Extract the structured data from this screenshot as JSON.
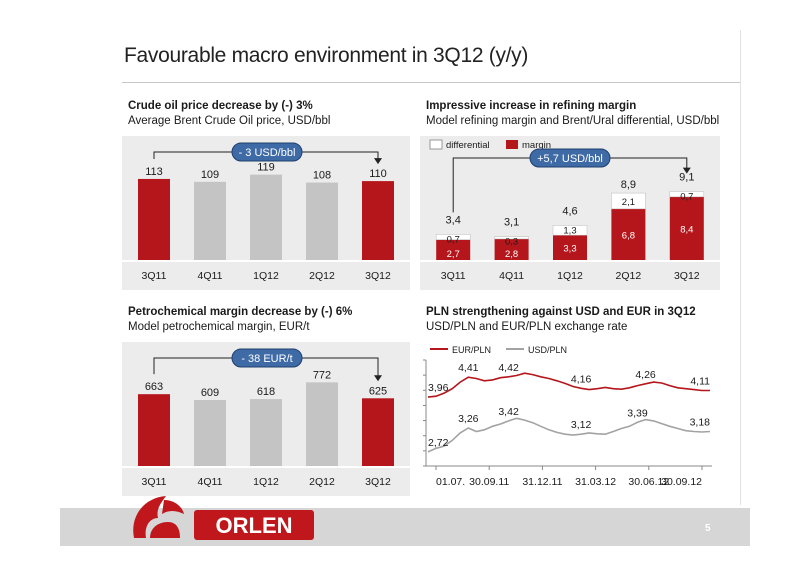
{
  "slide": {
    "title": "Favourable macro environment in 3Q12 (y/y)",
    "page": "5"
  },
  "brand": {
    "name": "ORLEN",
    "color": "#c0171c"
  },
  "colors": {
    "red": "#b5161b",
    "grey": "#c4c4c4",
    "bg": "#ececec",
    "callout": "#3e6aa6",
    "callout_text": "#ffffff"
  },
  "panels": {
    "crude": {
      "title": "Crude oil price decrease by (-) 3%",
      "subtitle": "Average Brent Crude Oil price, USD/bbl",
      "callout": "- 3 USD/bbl"
    },
    "refining": {
      "title": "Impressive increase in refining margin",
      "subtitle": "Model refining margin and Brent/Ural differential, USD/bbl",
      "callout": "+5,7 USD/bbl"
    },
    "petro": {
      "title": "Petrochemical margin decrease by (-) 6%",
      "subtitle": "Model petrochemical margin, EUR/t",
      "callout": "- 38 EUR/t"
    },
    "fx": {
      "title": "PLN strengthening against USD and EUR in 3Q12",
      "subtitle": "USD/PLN and EUR/PLN exchange rate"
    }
  },
  "chart_data": [
    {
      "id": "crude",
      "type": "bar",
      "categories": [
        "3Q11",
        "4Q11",
        "1Q12",
        "2Q12",
        "3Q12"
      ],
      "values": [
        113,
        109,
        119,
        108,
        110
      ],
      "labels": [
        "113",
        "109",
        "119",
        "108",
        "110"
      ],
      "highlight": [
        true,
        false,
        false,
        false,
        true
      ],
      "ylim": [
        0,
        145
      ]
    },
    {
      "id": "refining",
      "type": "bar",
      "stacked": true,
      "categories": [
        "3Q11",
        "4Q11",
        "1Q12",
        "2Q12",
        "3Q12"
      ],
      "series": [
        {
          "name": "margin",
          "values": [
            2.7,
            2.8,
            3.3,
            6.8,
            8.4
          ],
          "labels": [
            "2,7",
            "2,8",
            "3,3",
            "6,8",
            "8,4"
          ],
          "color": "#b5161b"
        },
        {
          "name": "differential",
          "values": [
            0.7,
            0.3,
            1.3,
            2.1,
            0.7
          ],
          "labels": [
            "0,7",
            "0,3",
            "1,3",
            "2,1",
            "0,7"
          ],
          "color": "#ffffff"
        }
      ],
      "totals": [
        3.4,
        3.1,
        4.6,
        8.9,
        9.1
      ],
      "total_labels": [
        "3,4",
        "3,1",
        "4,6",
        "8,9",
        "9,1"
      ],
      "legend_position": "top-left",
      "ylim": [
        0,
        12.5
      ]
    },
    {
      "id": "petro",
      "type": "bar",
      "categories": [
        "3Q11",
        "4Q11",
        "1Q12",
        "2Q12",
        "3Q12"
      ],
      "values": [
        663,
        609,
        618,
        772,
        625
      ],
      "labels": [
        "663",
        "609",
        "618",
        "772",
        "625"
      ],
      "highlight": [
        true,
        false,
        false,
        false,
        true
      ],
      "ylim": [
        0,
        960
      ]
    },
    {
      "id": "fx",
      "type": "line",
      "x_ticks": [
        "01.07.",
        "30.09.11",
        "31.12.11",
        "31.03.12",
        "30.06.12",
        "30.09.12"
      ],
      "ylim": [
        2.4,
        4.8
      ],
      "legend_position": "top-left",
      "series": [
        {
          "name": "EUR/PLN",
          "color": "#b5161b",
          "values": [
            3.96,
            3.98,
            4.05,
            4.15,
            4.3,
            4.41,
            4.38,
            4.33,
            4.35,
            4.4,
            4.42,
            4.45,
            4.5,
            4.47,
            4.42,
            4.38,
            4.33,
            4.27,
            4.2,
            4.16,
            4.13,
            4.15,
            4.18,
            4.15,
            4.14,
            4.17,
            4.22,
            4.26,
            4.3,
            4.28,
            4.22,
            4.17,
            4.15,
            4.13,
            4.11,
            4.11
          ],
          "annotations": [
            {
              "index": 0,
              "label": "3,96"
            },
            {
              "index": 5,
              "label": "4,41"
            },
            {
              "index": 10,
              "label": "4,42"
            },
            {
              "index": 19,
              "label": "4,16"
            },
            {
              "index": 27,
              "label": "4,26"
            },
            {
              "index": 35,
              "label": "4,11"
            }
          ]
        },
        {
          "name": "USD/PLN",
          "color": "#a3a3a3",
          "values": [
            2.72,
            2.8,
            2.85,
            2.98,
            3.15,
            3.26,
            3.18,
            3.22,
            3.3,
            3.35,
            3.42,
            3.48,
            3.44,
            3.38,
            3.3,
            3.22,
            3.16,
            3.12,
            3.1,
            3.12,
            3.15,
            3.13,
            3.12,
            3.18,
            3.25,
            3.3,
            3.39,
            3.45,
            3.42,
            3.36,
            3.3,
            3.25,
            3.2,
            3.18,
            3.17,
            3.18
          ],
          "annotations": [
            {
              "index": 0,
              "label": "2,72"
            },
            {
              "index": 5,
              "label": "3,26"
            },
            {
              "index": 10,
              "label": "3,42"
            },
            {
              "index": 19,
              "label": "3,12"
            },
            {
              "index": 26,
              "label": "3,39"
            },
            {
              "index": 35,
              "label": "3,18"
            }
          ]
        }
      ]
    }
  ]
}
